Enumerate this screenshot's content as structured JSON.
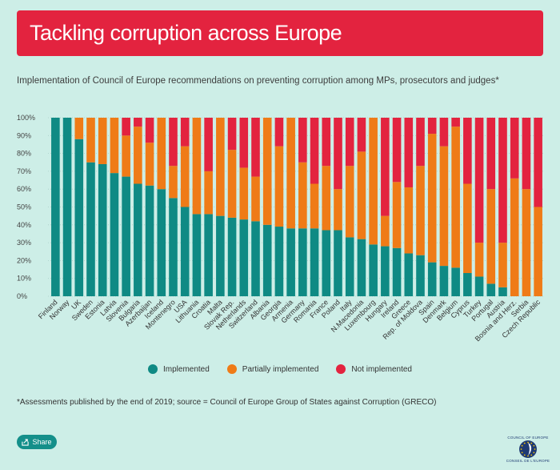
{
  "header": {
    "title": "Tackling corruption across Europe",
    "subtitle": "Implementation of Council of Europe recommendations on preventing corruption among MPs, prosecutors and judges*"
  },
  "footer": {
    "footnote": "*Assessments published by the end of 2019; source = Council of Europe Group of States against Corruption (GRECO)",
    "share_label": "Share",
    "logo_text_top": "COUNCIL OF EUROPE",
    "logo_text_bottom": "CONSEIL DE L'EUROPE"
  },
  "colors": {
    "implemented": "#0f8a84",
    "partially": "#ef7b17",
    "not": "#e3233f",
    "banner": "#e3233f",
    "background": "#cdeee7"
  },
  "chart_data": {
    "type": "bar",
    "stacked": true,
    "title": "",
    "xlabel": "",
    "ylabel": "",
    "ylim": [
      0,
      100
    ],
    "yticks": [
      "0%",
      "10%",
      "20%",
      "30%",
      "40%",
      "50%",
      "60%",
      "70%",
      "80%",
      "90%",
      "100%"
    ],
    "grid": true,
    "legend_position": "bottom",
    "categories": [
      "Finland",
      "Norway",
      "UK",
      "Sweden",
      "Estonia",
      "Latvia",
      "Slovenia",
      "Bulgaria",
      "Azerbaijan",
      "Iceland",
      "Montenegro",
      "USA",
      "Lithuania",
      "Croatia",
      "Malta",
      "Slovak Rep.",
      "Netherlands",
      "Switzerland",
      "Albania",
      "Georgia",
      "Armenia",
      "Germany",
      "Romania",
      "France",
      "Poland",
      "Italy",
      "N.Macedonia",
      "Luxembourg",
      "Hungary",
      "Ireland",
      "Greece",
      "Rep. of Moldova",
      "Spain",
      "Denmark",
      "Belgium",
      "Cyprus",
      "Turkey",
      "Portugal",
      "Austria",
      "Bosnia and Herz.",
      "Serbia",
      "Czech Republic"
    ],
    "series": [
      {
        "name": "Implemented",
        "values": [
          100,
          100,
          88,
          75,
          74,
          69,
          67,
          63,
          62,
          60,
          55,
          50,
          46,
          46,
          45,
          44,
          43,
          42,
          40,
          39,
          38,
          38,
          38,
          37,
          37,
          33,
          32,
          29,
          28,
          27,
          24,
          23,
          19,
          17,
          16,
          13,
          11,
          7,
          5,
          0,
          0,
          0
        ]
      },
      {
        "name": "Partially implemented",
        "values": [
          0,
          0,
          12,
          25,
          26,
          31,
          23,
          32,
          24,
          40,
          18,
          34,
          54,
          24,
          55,
          38,
          29,
          25,
          60,
          45,
          62,
          37,
          25,
          36,
          23,
          40,
          49,
          71,
          17,
          37,
          37,
          50,
          72,
          67,
          79,
          50,
          19,
          53,
          25,
          66,
          60,
          50
        ]
      },
      {
        "name": "Not implemented",
        "values": [
          0,
          0,
          0,
          0,
          0,
          0,
          10,
          5,
          14,
          0,
          27,
          16,
          0,
          30,
          0,
          18,
          28,
          33,
          0,
          16,
          0,
          25,
          37,
          27,
          40,
          27,
          19,
          0,
          55,
          36,
          39,
          27,
          9,
          16,
          5,
          37,
          70,
          40,
          70,
          34,
          40,
          50
        ]
      }
    ]
  }
}
